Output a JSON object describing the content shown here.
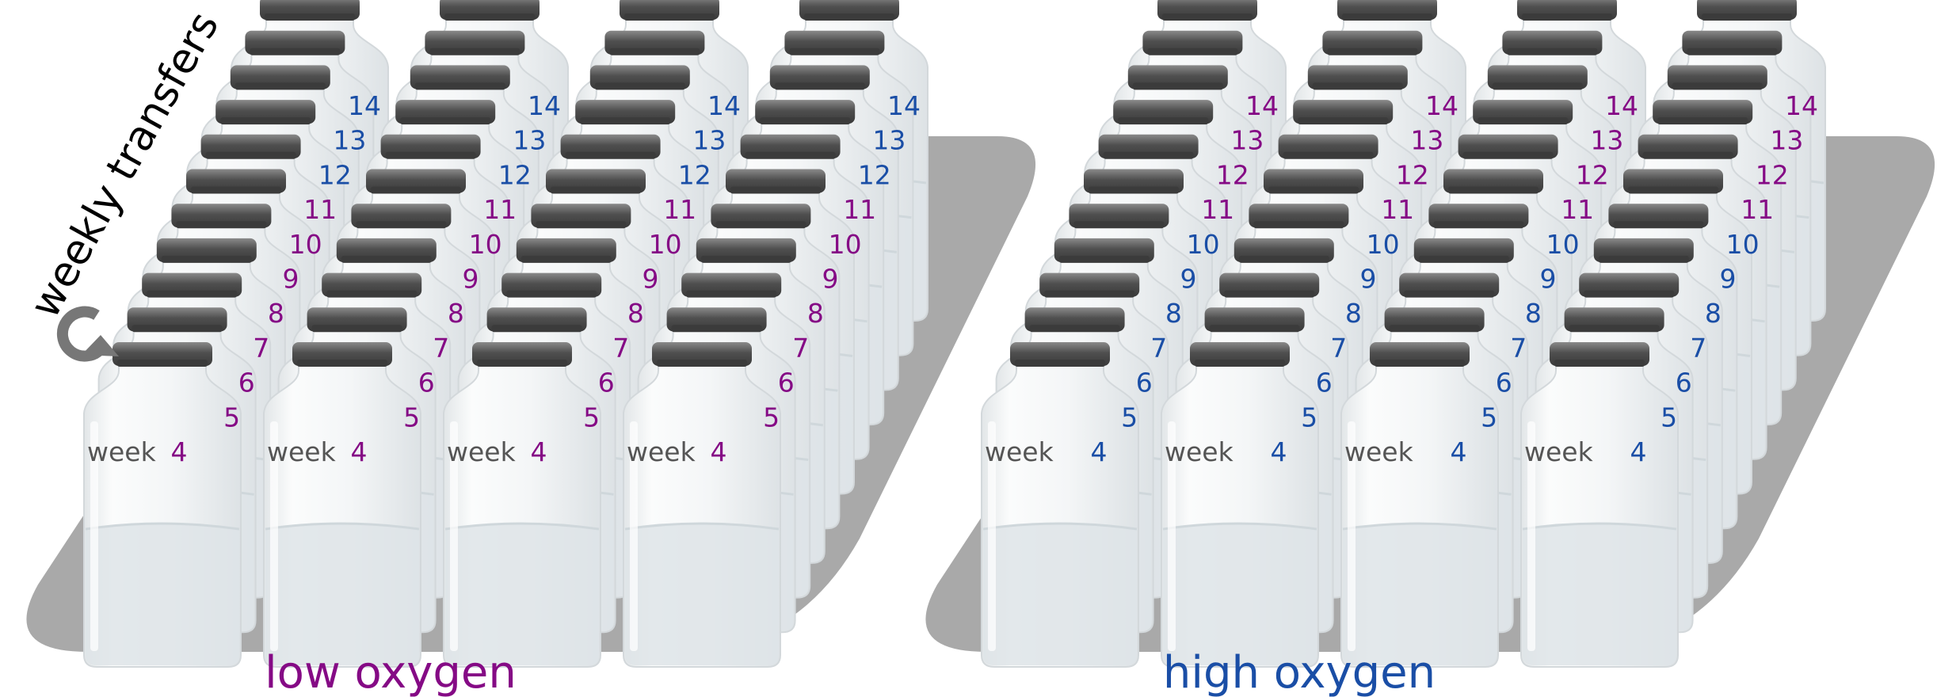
{
  "transfers_label": "weekly transfers",
  "week_word": "week",
  "weeks": [
    "4",
    "5",
    "6",
    "7",
    "8",
    "9",
    "10",
    "11",
    "12",
    "13",
    "14"
  ],
  "groups": [
    {
      "label": "low oxygen",
      "color_a": "#850a85",
      "color_b": "#1a4ea6",
      "switch_after_week": "11",
      "columns": 4
    },
    {
      "label": "high oxygen",
      "color_a": "#1a4ea6",
      "color_b": "#850a85",
      "switch_after_week": "10",
      "columns": 4
    }
  ],
  "colors": {
    "tray": "#a9a9a9",
    "cap": "#5a5a5a",
    "glass": "#f1f3f4",
    "liquid": "#dfe5e8",
    "week_word": "#555555",
    "arrow": "#777777",
    "label_text": "#000000"
  }
}
